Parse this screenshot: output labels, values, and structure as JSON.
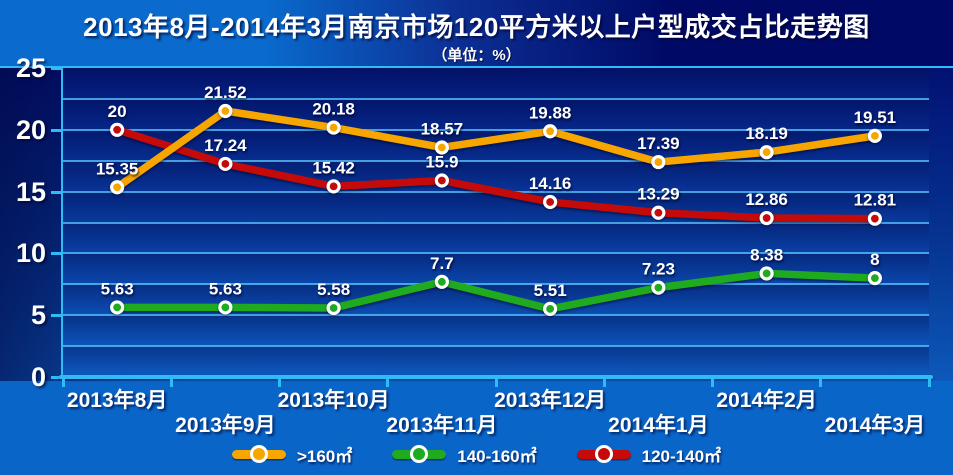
{
  "title": "2013年8月-2014年3月南京市场120平方米以上户型成交占比走势图",
  "subtitle": "（单位：%）",
  "chart_data": {
    "type": "line",
    "categories": [
      "2013年8月",
      "2013年9月",
      "2013年10月",
      "2013年11月",
      "2013年12月",
      "2014年1月",
      "2014年2月",
      "2014年3月"
    ],
    "series": [
      {
        "name": ">160㎡",
        "color": "#F7A600",
        "values": [
          15.35,
          21.52,
          20.18,
          18.57,
          19.88,
          17.39,
          18.19,
          19.51
        ]
      },
      {
        "name": "140-160㎡",
        "color": "#1FAA1F",
        "values": [
          5.63,
          5.63,
          5.58,
          7.7,
          5.51,
          7.23,
          8.38,
          8
        ]
      },
      {
        "name": "120-140㎡",
        "color": "#C50A0A",
        "values": [
          20,
          17.24,
          15.42,
          15.9,
          14.16,
          13.29,
          12.86,
          12.81
        ]
      }
    ],
    "ylim": [
      0,
      25
    ],
    "y_ticks": [
      25,
      20,
      15,
      10,
      5,
      0
    ],
    "gridline_step": 2.5,
    "grid": "horizontal",
    "legend_position": "bottom",
    "data_labels": "above-point"
  },
  "colors": {
    "axis": "#2FBBF5",
    "gridline": "#55BEF8",
    "label_text": "#FFFFFF",
    "background_top_right": "#000A66",
    "background_bottom_left": "#0A6ACD"
  }
}
